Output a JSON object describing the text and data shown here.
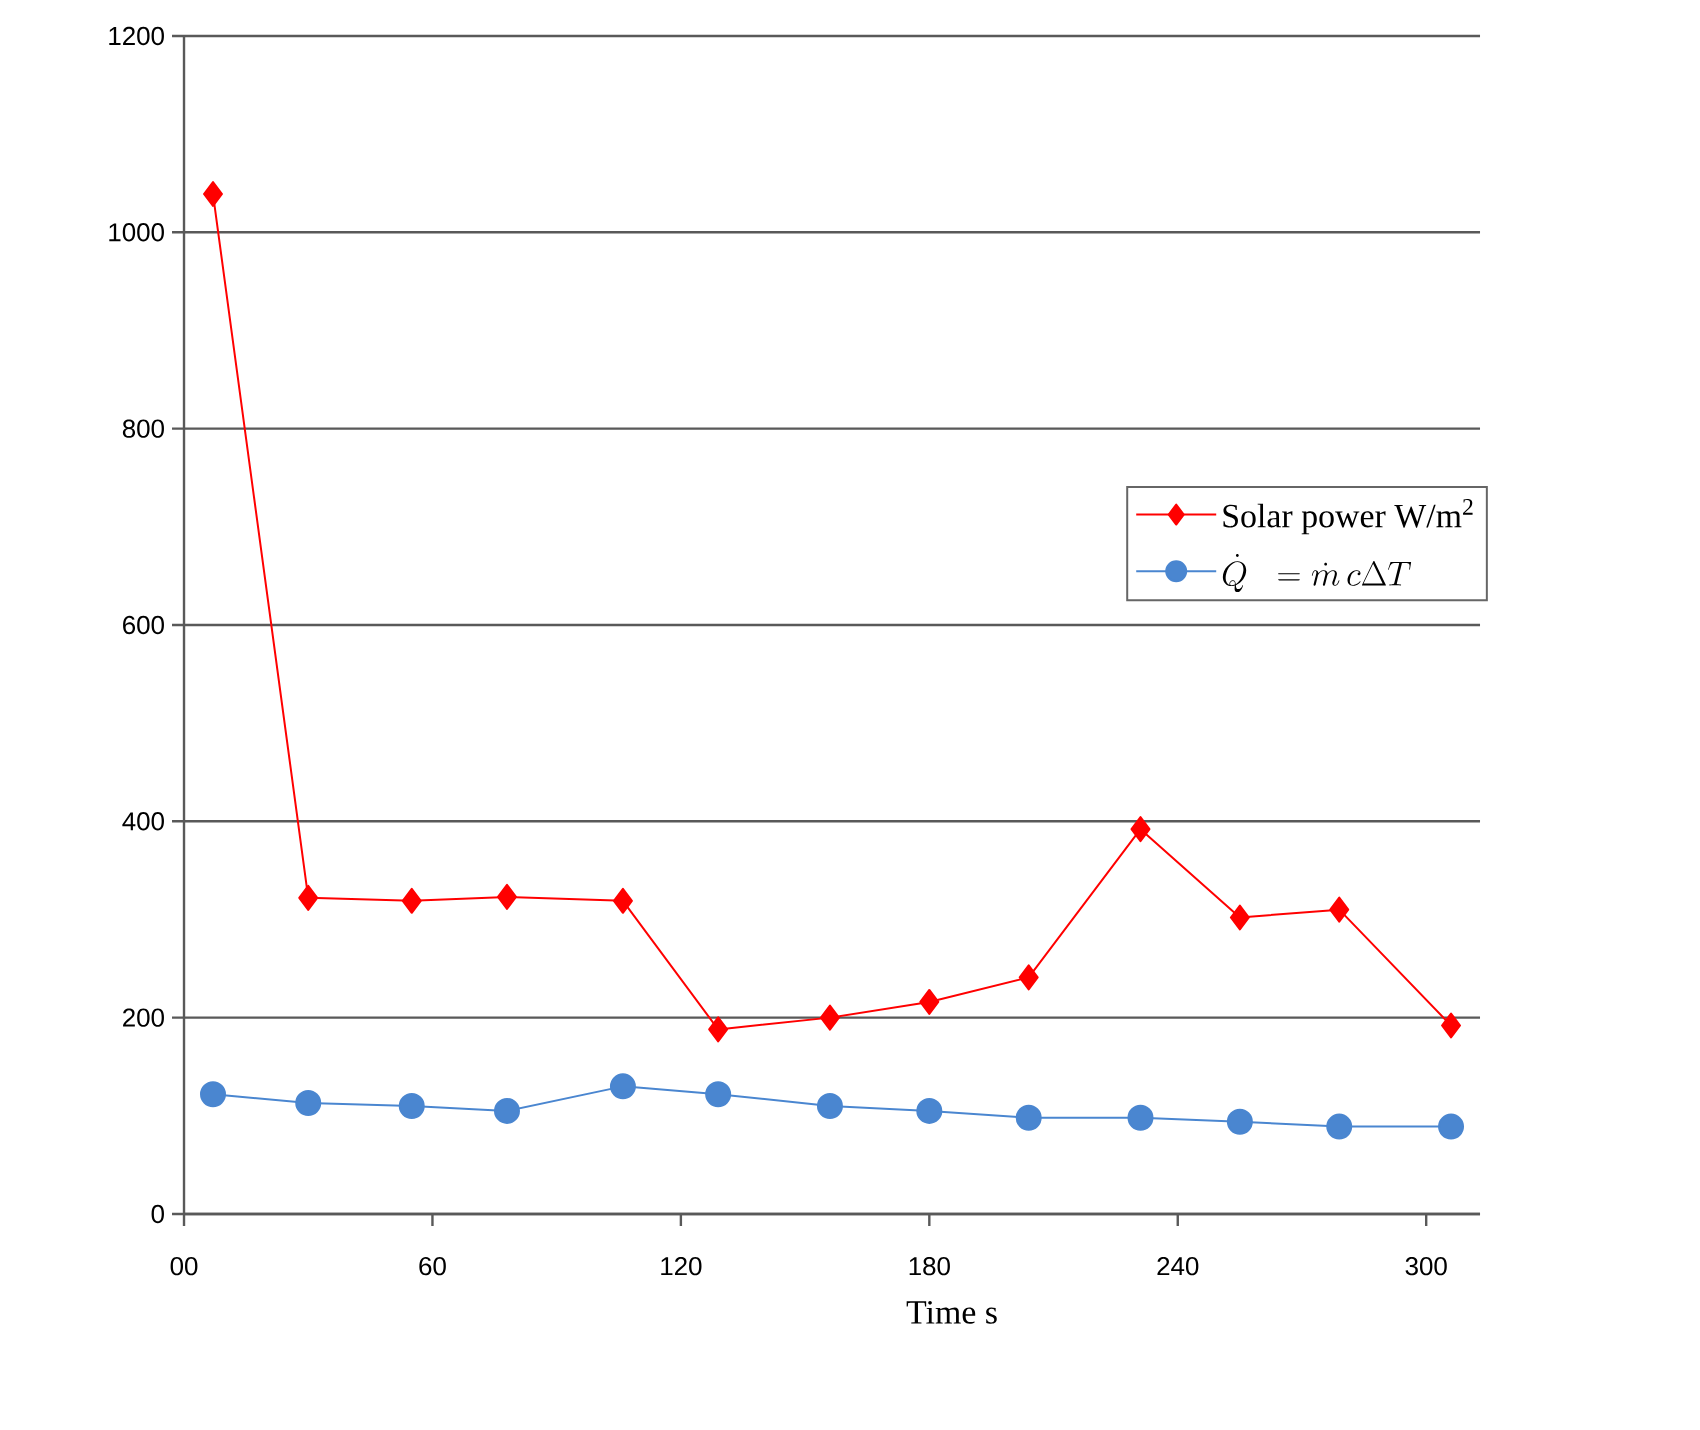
{
  "chart_data": {
    "type": "line",
    "xlabel": "Time s",
    "x": [
      7,
      30,
      55,
      78,
      106,
      129,
      156,
      180,
      204,
      231,
      255,
      279,
      306
    ],
    "series": [
      {
        "name": "Solar power W/m$^{2}$",
        "color": "#ff0000",
        "marker": "diamond",
        "values": [
          1039,
          322,
          319,
          323,
          319,
          188,
          200,
          216,
          241,
          392,
          302,
          310,
          192
        ]
      },
      {
        "name": "\\dot{Q}\\;\\;=\\dot{m}\\,c\\Delta T",
        "color": "#4a86d0",
        "marker": "circle",
        "values": [
          122,
          113,
          110,
          105,
          130,
          122,
          110,
          105,
          98,
          98,
          94,
          89,
          89
        ]
      }
    ],
    "xlim": [
      0,
      313
    ],
    "xticks": [
      {
        "value": 0,
        "label": "00"
      },
      60,
      120,
      180,
      240,
      300
    ],
    "ylim": [
      0,
      1200
    ],
    "yticks": [
      0,
      200,
      400,
      600,
      800,
      1000,
      1200
    ],
    "grid": "y",
    "legend": "right"
  }
}
